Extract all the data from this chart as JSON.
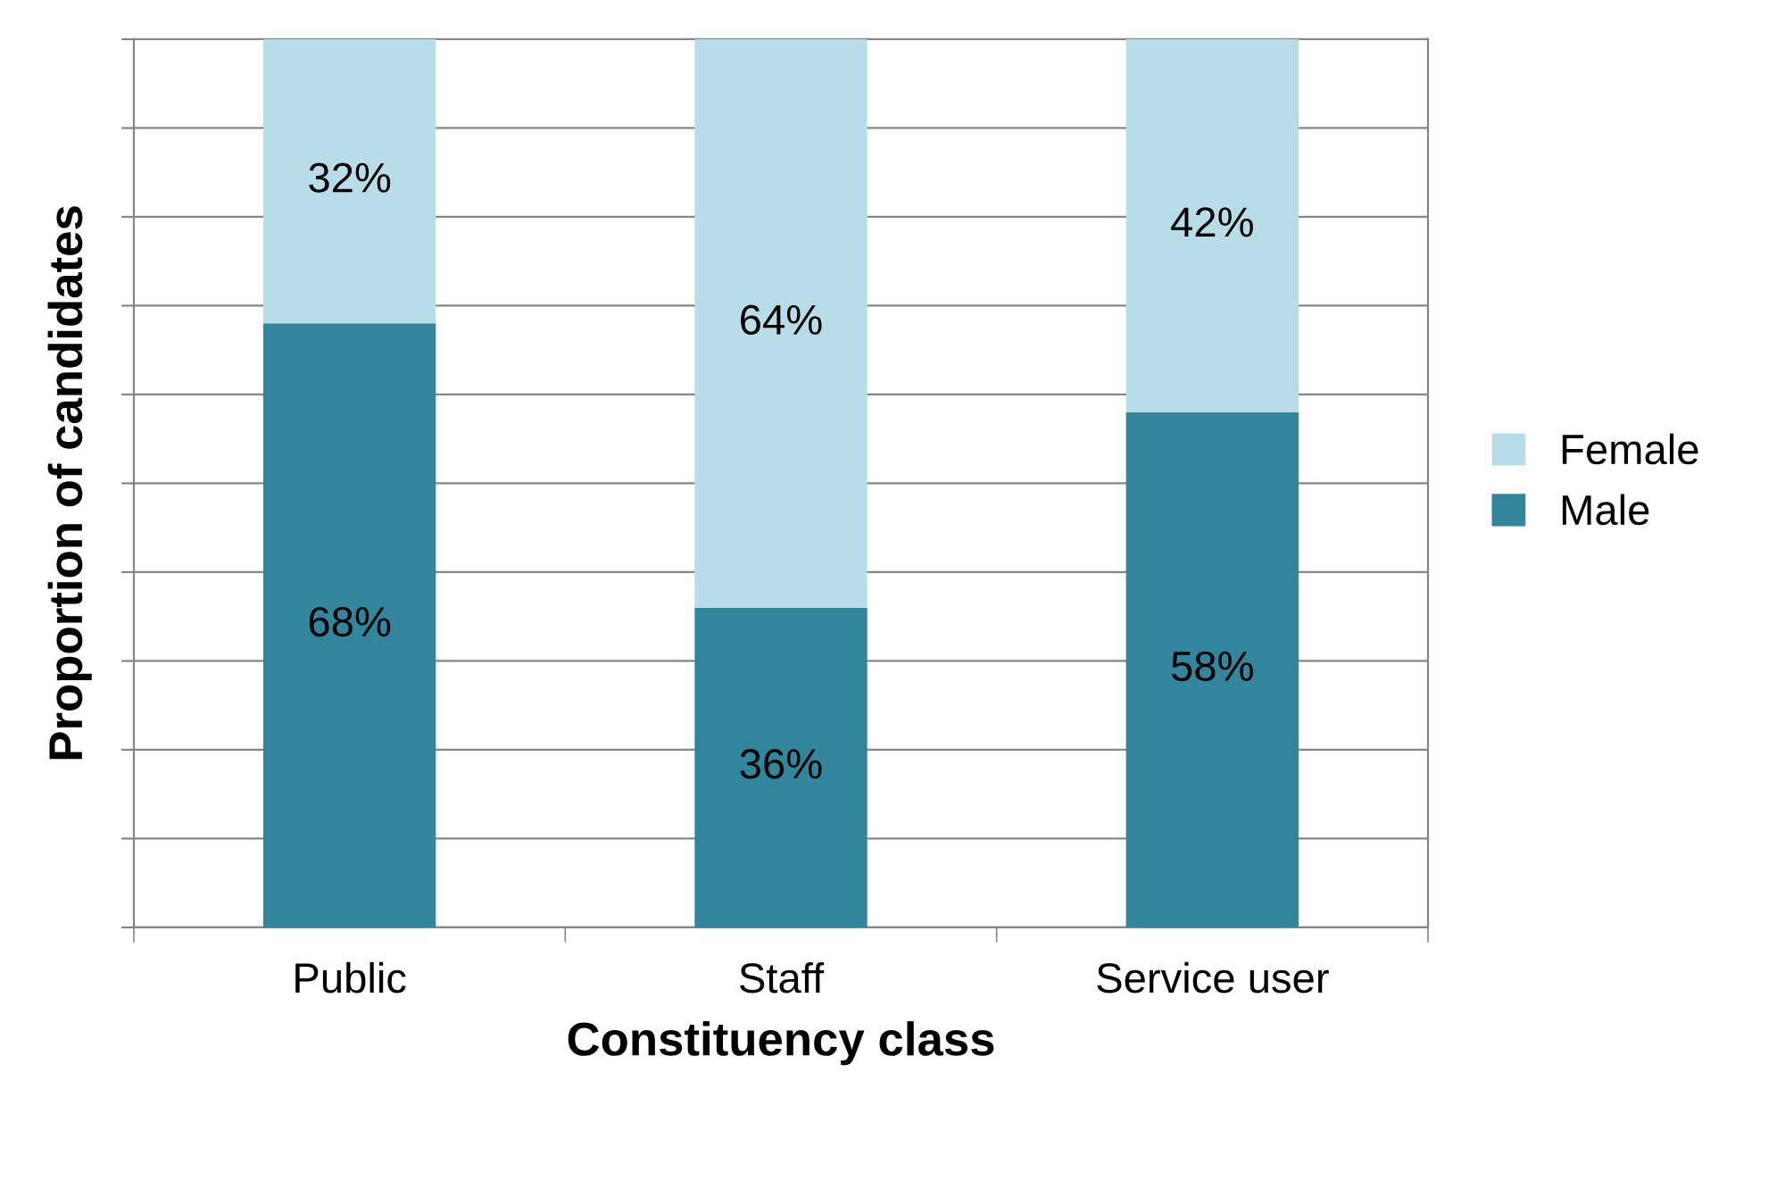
{
  "chart_data": {
    "type": "bar",
    "stacked": true,
    "xlabel": "Constituency class",
    "ylabel": "Proportion of candidates",
    "categories": [
      "Public",
      "Staff",
      "Service user"
    ],
    "series": [
      {
        "name": "Male",
        "color": "#31869b",
        "values": [
          68,
          36,
          58
        ],
        "value_labels": [
          "68%",
          "36%",
          "58%"
        ]
      },
      {
        "name": "Female",
        "color": "#b7dee8",
        "values": [
          32,
          64,
          42
        ],
        "value_labels": [
          "32%",
          "64%",
          "42%"
        ]
      }
    ],
    "ylim": [
      0,
      100
    ],
    "yticks": [
      {
        "value": 0,
        "label": null
      },
      {
        "value": 10,
        "label": null
      },
      {
        "value": 20,
        "label": null
      },
      {
        "value": 30,
        "label": null
      },
      {
        "value": 40,
        "label": null
      },
      {
        "value": 50,
        "label": null
      },
      {
        "value": 60,
        "label": null
      },
      {
        "value": 70,
        "label": null
      },
      {
        "value": 80,
        "label": null
      },
      {
        "value": 90,
        "label": null
      },
      {
        "value": 100,
        "label": null
      }
    ],
    "tick_labels": "x",
    "grid": "y",
    "legend": "right"
  }
}
